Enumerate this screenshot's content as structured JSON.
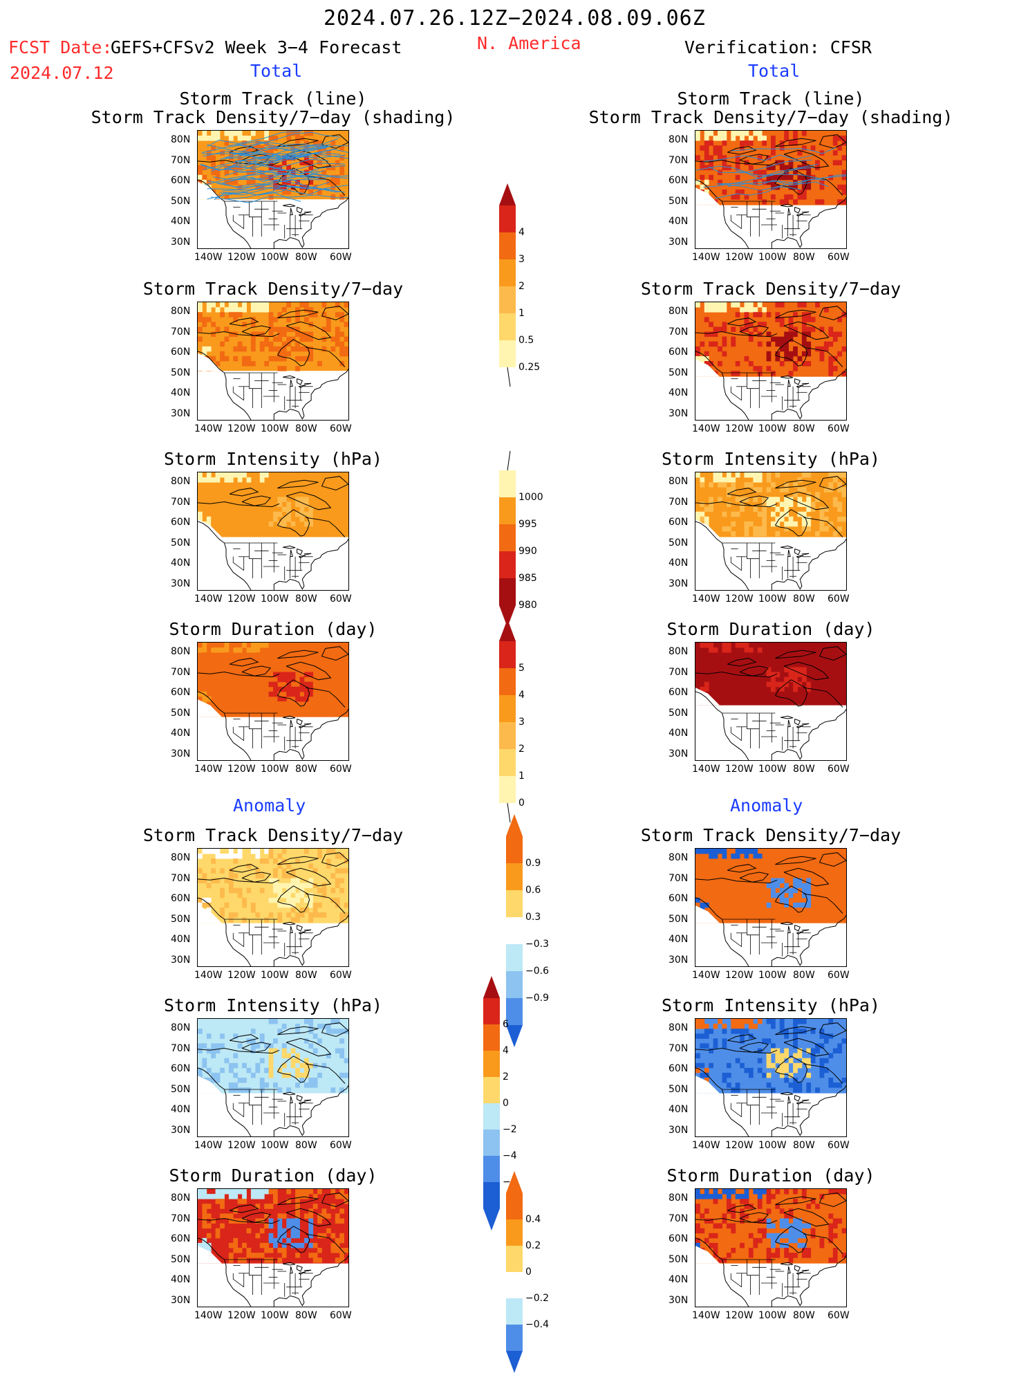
{
  "header": {
    "period": "2024.07.26.12Z−2024.08.09.06Z",
    "fcst_date_label": "FCST Date:",
    "fcst_date": "2024.07.12",
    "forecast_name": "GEFS+CFSv2 Week 3−4 Forecast",
    "region": "N. America",
    "verification": "Verification: CFSR",
    "left_total": "Total",
    "right_total": "Total",
    "left_anomaly": "Anomaly",
    "right_anomaly": "Anomaly"
  },
  "panel_titles": {
    "track_line": "Storm Track (line)",
    "track_shading": "Storm Track Density/7−day (shading)",
    "density": "Storm Track Density/7−day",
    "intensity": "Storm Intensity (hPa)",
    "duration": "Storm Duration (day)"
  },
  "axes": {
    "lat_labels": [
      "80N",
      "70N",
      "60N",
      "50N",
      "40N",
      "30N"
    ],
    "lon_labels": [
      "140W",
      "120W",
      "100W",
      "80W",
      "60W"
    ]
  },
  "colorbars": {
    "density_total": [
      "4",
      "3",
      "2",
      "1",
      "0.5",
      "0.25"
    ],
    "intensity_total": [
      "1000",
      "995",
      "990",
      "985",
      "980"
    ],
    "duration_total": [
      "5",
      "4",
      "3",
      "2",
      "1",
      "0"
    ],
    "density_anom": [
      "0.9",
      "0.6",
      "0.3",
      "−0.3",
      "−0.6",
      "−0.9"
    ],
    "intensity_anom": [
      "6",
      "4",
      "2",
      "0",
      "−2",
      "−4",
      "−6"
    ],
    "duration_anom": [
      "0.4",
      "0.2",
      "0",
      "−0.2",
      "−0.4"
    ]
  },
  "colors": {
    "title_red": "#ff2a2a",
    "title_blue": "#1a3cff",
    "pale_yellow": "#fff5b0",
    "yellow": "#fed86a",
    "light_orange": "#fdba4c",
    "orange": "#f99a1c",
    "dark_orange": "#f26a12",
    "red": "#d9251a",
    "dark_red": "#a60f12",
    "light_blue": "#bde8f5",
    "mid_blue": "#8cc3f0",
    "blue": "#4f8ee8",
    "dark_blue": "#1c5fd4",
    "track_blue": "#2a8fd8"
  }
}
